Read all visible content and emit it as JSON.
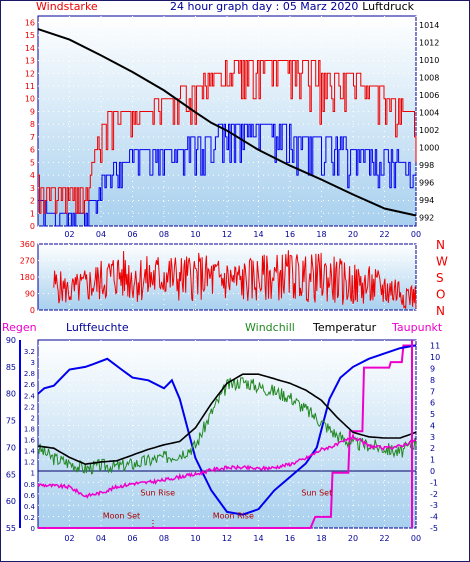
{
  "colors": {
    "blue": "#0000ee",
    "red": "#ee0000",
    "magenta": "#ee00cc",
    "green": "#228822",
    "black": "#000000",
    "axis_blue": "#00009a",
    "bg_top": "#ffffff",
    "bg_bottom": "#a8d0ee"
  },
  "hours": [
    "02",
    "04",
    "06",
    "08",
    "10",
    "12",
    "14",
    "16",
    "18",
    "20",
    "22",
    "00"
  ],
  "chart_data": [
    {
      "type": "line",
      "panel": "wind-pressure",
      "title": "24 hour graph day : 05 Marz 2020",
      "left_label": "Windstarke",
      "right_label": "Luftdruck",
      "x_ticks": [
        "02",
        "04",
        "06",
        "08",
        "10",
        "12",
        "14",
        "16",
        "18",
        "20",
        "22",
        "00"
      ],
      "left_ticks": [
        "0",
        "1",
        "2",
        "3",
        "4",
        "5",
        "6",
        "7",
        "8",
        "9",
        "10",
        "11",
        "12",
        "13",
        "14",
        "15",
        "16"
      ],
      "right_ticks": [
        "992",
        "994",
        "996",
        "998",
        "1000",
        "1002",
        "1004",
        "1006",
        "1008",
        "1010",
        "1012",
        "1014"
      ],
      "ylim_left": [
        0,
        16.5
      ],
      "ylim_right": [
        991,
        1015
      ],
      "x_hours": [
        0,
        2,
        4,
        6,
        8,
        10,
        12,
        14,
        16,
        18,
        20,
        22,
        24
      ],
      "series": [
        {
          "name": "Luftdruck",
          "color": "black",
          "x": [
            0,
            2,
            4,
            6,
            8,
            10,
            11,
            12,
            14,
            16,
            18,
            20,
            22,
            24
          ],
          "values": [
            1013.5,
            1012.3,
            1010.5,
            1008.6,
            1006.5,
            1004.0,
            1002.8,
            1001.9,
            999.7,
            997.9,
            996.3,
            994.6,
            993.0,
            992.2
          ]
        },
        {
          "name": "Windstarke (Boen)",
          "color": "red",
          "x": [
            0,
            1,
            2,
            3,
            4,
            5,
            6,
            7,
            8,
            9,
            10,
            11,
            12,
            13,
            14,
            15,
            16,
            17,
            18,
            19,
            20,
            21,
            22,
            23,
            24
          ],
          "values": [
            3.6,
            2.5,
            2.5,
            2.5,
            8.2,
            9.1,
            9.3,
            9.3,
            10.1,
            10.5,
            11.0,
            12.3,
            12.6,
            13.0,
            13.2,
            13.4,
            12.9,
            12.8,
            12.6,
            12.0,
            11.8,
            11.1,
            10.6,
            9.9,
            8.2
          ],
          "band_low": [
            1.0,
            0.5,
            0.8,
            1.0,
            3.6,
            6.1,
            6.9,
            7.3,
            7.3,
            7.3,
            7.7,
            8.6,
            9.2,
            9.2,
            9.2,
            9.2,
            8.4,
            8.0,
            7.6,
            7.6,
            7.6,
            7.6,
            7.0,
            6.4,
            5.0
          ]
        },
        {
          "name": "Windstarke (Mittel)",
          "color": "blue",
          "x": [
            0,
            1,
            2,
            3,
            4,
            5,
            6,
            7,
            8,
            9,
            10,
            11,
            12,
            13,
            14,
            15,
            16,
            17,
            18,
            19,
            20,
            21,
            22,
            23,
            24
          ],
          "values": [
            1.9,
            1.1,
            1.1,
            1.0,
            3.6,
            5.3,
            5.6,
            6.0,
            6.1,
            6.4,
            6.6,
            7.5,
            7.8,
            8.0,
            8.1,
            8.1,
            7.5,
            7.2,
            6.9,
            6.6,
            6.4,
            6.1,
            5.9,
            5.4,
            4.1
          ],
          "band_low": [
            0.3,
            0.0,
            0.0,
            0.0,
            1.5,
            3.0,
            3.5,
            3.8,
            3.8,
            4.0,
            3.4,
            4.3,
            4.5,
            4.6,
            4.7,
            4.7,
            4.3,
            4.1,
            3.9,
            3.6,
            3.4,
            3.3,
            3.1,
            2.8,
            2.0
          ]
        }
      ]
    },
    {
      "type": "line",
      "panel": "wind-direction",
      "right_labels": [
        "N",
        "W",
        "S",
        "O",
        "N"
      ],
      "left_ticks": [
        "0",
        "90",
        "180",
        "270",
        "360"
      ],
      "x_ticks": [
        "02",
        "04",
        "06",
        "08",
        "10",
        "12",
        "14",
        "16",
        "18",
        "20",
        "22",
        "00"
      ],
      "ylim": [
        0,
        360
      ],
      "series": [
        {
          "name": "Windrichtung",
          "color": "red",
          "x": [
            1,
            2,
            3,
            4,
            5,
            6,
            7,
            8,
            9,
            10,
            11,
            12,
            13,
            14,
            15,
            16,
            17,
            18,
            19,
            20,
            21,
            22,
            23,
            24
          ],
          "values": [
            130,
            70,
            110,
            150,
            210,
            180,
            160,
            200,
            170,
            190,
            180,
            170,
            160,
            180,
            190,
            200,
            170,
            180,
            150,
            120,
            110,
            100,
            90,
            40
          ],
          "band_low": [
            40,
            20,
            30,
            40,
            60,
            40,
            30,
            60,
            40,
            50,
            40,
            40,
            30,
            40,
            50,
            60,
            40,
            40,
            30,
            20,
            20,
            10,
            10,
            0
          ],
          "band_high": [
            240,
            180,
            230,
            280,
            330,
            320,
            300,
            330,
            300,
            320,
            300,
            290,
            280,
            300,
            310,
            330,
            300,
            320,
            290,
            250,
            240,
            220,
            200,
            140
          ]
        }
      ]
    },
    {
      "type": "line",
      "panel": "climate",
      "labels": {
        "regen": "Regen",
        "luftfeuchte": "Luftfeuchte",
        "windchill": "Windchill",
        "temperatur": "Temperatur",
        "taupunkt": "Taupunkt"
      },
      "humidity_ticks": [
        "55",
        "60",
        "65",
        "70",
        "75",
        "80",
        "85",
        "90"
      ],
      "rain_ticks": [
        "0",
        "0.2",
        "0.4",
        "0.6",
        "0.8",
        "1",
        "1.2",
        "1.4",
        "1.6",
        "1.8",
        "2",
        "2.2",
        "2.4",
        "2.6",
        "2.8",
        "3",
        "3.2"
      ],
      "temp_ticks": [
        "-5",
        "-4",
        "-3",
        "-2",
        "-1",
        "0",
        "1",
        "2",
        "3",
        "4",
        "5",
        "6",
        "7",
        "8",
        "9",
        "10",
        "11"
      ],
      "x_ticks": [
        "02",
        "04",
        "06",
        "08",
        "10",
        "12",
        "14",
        "16",
        "18",
        "20",
        "22",
        "00"
      ],
      "ylim_humidity": [
        55,
        90
      ],
      "ylim_temp": [
        -5,
        11.5
      ],
      "annotations": [
        {
          "text": "Moon Set",
          "hour": 5.3,
          "y": -3.9
        },
        {
          "text": "Sun Rise",
          "hour": 7.6,
          "y": -1.9
        },
        {
          "text": "Moon Rise",
          "hour": 12.4,
          "y": -3.9
        },
        {
          "text": "Sun Set",
          "hour": 17.7,
          "y": -1.9
        }
      ],
      "series": [
        {
          "name": "Luftfeuchte",
          "color": "blue",
          "unit_axis": "humidity",
          "x": [
            0,
            0.4,
            1,
            2,
            3,
            3.5,
            4.4,
            5.3,
            6,
            7,
            8,
            8.5,
            9,
            10,
            11,
            12,
            13,
            14,
            15,
            16,
            17,
            17.7,
            18.5,
            19.2,
            20,
            21,
            22,
            23,
            24
          ],
          "values": [
            80,
            81,
            81.5,
            84.5,
            85,
            85.5,
            86.5,
            84.5,
            83,
            82.5,
            81,
            82.5,
            79,
            68,
            62,
            58,
            57.5,
            58.5,
            62,
            64.5,
            67,
            70,
            79,
            83,
            85,
            86.5,
            87.5,
            88.5,
            89
          ]
        },
        {
          "name": "Temperatur",
          "color": "black",
          "unit_axis": "temp",
          "x": [
            0,
            1,
            2,
            3,
            4,
            5,
            6,
            7,
            8,
            9,
            10,
            11,
            12,
            13,
            14,
            15,
            16,
            17,
            18,
            19,
            20,
            21,
            22,
            23,
            24
          ],
          "values": [
            2.2,
            2.0,
            1.2,
            0.6,
            0.8,
            0.9,
            1.4,
            1.9,
            2.3,
            2.6,
            3.8,
            5.9,
            7.7,
            8.5,
            8.5,
            8.1,
            7.7,
            7.1,
            6.2,
            4.7,
            3.4,
            3.0,
            2.9,
            2.9,
            3.4
          ]
        },
        {
          "name": "Windchill",
          "color": "green",
          "unit_axis": "temp",
          "x": [
            0,
            1,
            2,
            3,
            4,
            5,
            6,
            7,
            8,
            9,
            10,
            11,
            12,
            13,
            14,
            15,
            16,
            17,
            18,
            19,
            20,
            21,
            22,
            23,
            24
          ],
          "values": [
            2.0,
            1.1,
            0.7,
            0.2,
            0.5,
            0.4,
            0.6,
            0.9,
            1.2,
            1.5,
            2.2,
            5.1,
            7.5,
            7.9,
            7.4,
            7.0,
            6.5,
            5.4,
            4.3,
            3.1,
            2.4,
            2.3,
            2.0,
            1.6,
            2.6
          ]
        },
        {
          "name": "Taupunkt",
          "color": "magenta",
          "unit_axis": "temp",
          "x": [
            0,
            1,
            2,
            3,
            4,
            5,
            6,
            7,
            8,
            9,
            10,
            11,
            12,
            13,
            14,
            15,
            16,
            17,
            18,
            19,
            20,
            21,
            22,
            23,
            24
          ],
          "values": [
            -1.2,
            -1.3,
            -1.4,
            -2.2,
            -1.9,
            -1.4,
            -1.1,
            -1.0,
            -0.8,
            -0.5,
            -0.3,
            0.1,
            0.3,
            0.3,
            0.2,
            0.3,
            0.6,
            1.1,
            1.9,
            2.3,
            3.0,
            2.2,
            2.0,
            2.2,
            2.7
          ]
        },
        {
          "name": "Regen",
          "color": "magenta",
          "unit_axis": "rain",
          "x": [
            0,
            17.3,
            17.6,
            18.6,
            18.7,
            19.7,
            19.8,
            20.6,
            20.7,
            22.3,
            22.4,
            23.1,
            23.2,
            24
          ],
          "values": [
            0,
            0,
            0.2,
            0.2,
            1.0,
            1.0,
            1.75,
            1.75,
            2.9,
            2.9,
            3.0,
            3.0,
            3.3,
            3.3
          ]
        }
      ]
    }
  ]
}
